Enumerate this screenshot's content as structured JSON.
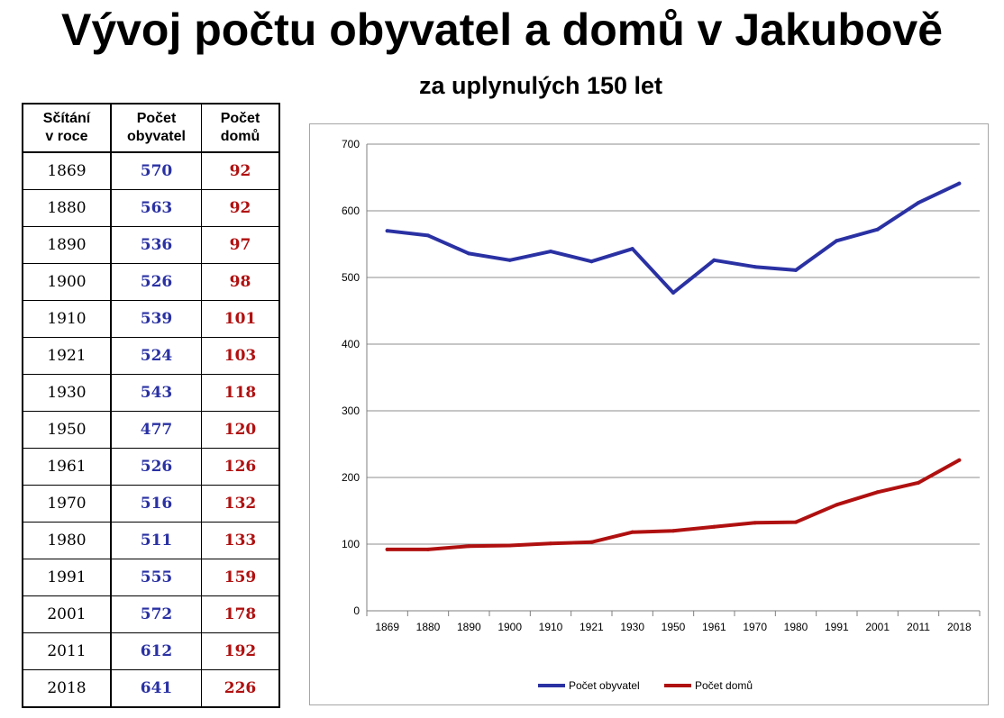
{
  "title": "Vývoj počtu obyvatel a domů v Jakubově",
  "subtitle": "za uplynulých 150 let",
  "table": {
    "headers": [
      [
        "Sčítání",
        "v roce"
      ],
      [
        "Počet",
        "obyvatel"
      ],
      [
        "Počet",
        "domů"
      ]
    ],
    "rows": [
      {
        "year": "1869",
        "pop": "570",
        "houses": "92"
      },
      {
        "year": "1880",
        "pop": "563",
        "houses": "92"
      },
      {
        "year": "1890",
        "pop": "536",
        "houses": "97"
      },
      {
        "year": "1900",
        "pop": "526",
        "houses": "98"
      },
      {
        "year": "1910",
        "pop": "539",
        "houses": "101"
      },
      {
        "year": "1921",
        "pop": "524",
        "houses": "103"
      },
      {
        "year": "1930",
        "pop": "543",
        "houses": "118"
      },
      {
        "year": "1950",
        "pop": "477",
        "houses": "120"
      },
      {
        "year": "1961",
        "pop": "526",
        "houses": "126"
      },
      {
        "year": "1970",
        "pop": "516",
        "houses": "132"
      },
      {
        "year": "1980",
        "pop": "511",
        "houses": "133"
      },
      {
        "year": "1991",
        "pop": "555",
        "houses": "159"
      },
      {
        "year": "2001",
        "pop": "572",
        "houses": "178"
      },
      {
        "year": "2011",
        "pop": "612",
        "houses": "192"
      },
      {
        "year": "2018",
        "pop": "641",
        "houses": "226"
      }
    ]
  },
  "colors": {
    "population": "#2a31a3",
    "houses": "#b01010",
    "grid": "#8c8c8c"
  },
  "chart_data": {
    "type": "line",
    "categories": [
      "1869",
      "1880",
      "1890",
      "1900",
      "1910",
      "1921",
      "1930",
      "1950",
      "1961",
      "1970",
      "1980",
      "1991",
      "2001",
      "2011",
      "2018"
    ],
    "series": [
      {
        "name": "Počet obyvatel",
        "values": [
          570,
          563,
          536,
          526,
          539,
          524,
          543,
          477,
          526,
          516,
          511,
          555,
          572,
          612,
          641
        ],
        "color": "#2a31a3"
      },
      {
        "name": "Počet domů",
        "values": [
          92,
          92,
          97,
          98,
          101,
          103,
          118,
          120,
          126,
          132,
          133,
          159,
          178,
          192,
          226
        ],
        "color": "#b01010"
      }
    ],
    "ylim": [
      0,
      700
    ],
    "yticks": [
      0,
      100,
      200,
      300,
      400,
      500,
      600,
      700
    ],
    "grid": true,
    "legend": "bottom"
  }
}
